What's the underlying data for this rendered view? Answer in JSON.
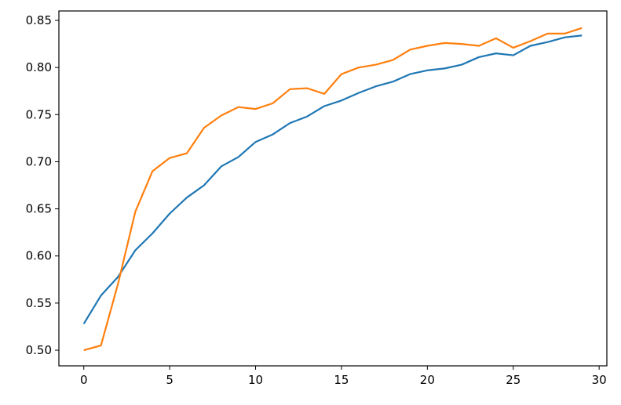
{
  "chart_data": {
    "type": "line",
    "x": [
      0,
      1,
      2,
      3,
      4,
      5,
      6,
      7,
      8,
      9,
      10,
      11,
      12,
      13,
      14,
      15,
      16,
      17,
      18,
      19,
      20,
      21,
      22,
      23,
      24,
      25,
      26,
      27,
      28,
      29
    ],
    "series": [
      {
        "color": "#1f77b4",
        "values": [
          0.528,
          0.558,
          0.578,
          0.606,
          0.624,
          0.645,
          0.662,
          0.675,
          0.695,
          0.705,
          0.721,
          0.729,
          0.741,
          0.748,
          0.759,
          0.765,
          0.773,
          0.78,
          0.785,
          0.793,
          0.797,
          0.799,
          0.803,
          0.811,
          0.815,
          0.813,
          0.823,
          0.827,
          0.832,
          0.834
        ]
      },
      {
        "color": "#ff7f0e",
        "values": [
          0.5,
          0.505,
          0.571,
          0.647,
          0.69,
          0.704,
          0.709,
          0.736,
          0.749,
          0.758,
          0.756,
          0.762,
          0.777,
          0.778,
          0.772,
          0.793,
          0.8,
          0.803,
          0.808,
          0.819,
          0.823,
          0.826,
          0.825,
          0.823,
          0.831,
          0.821,
          0.828,
          0.836,
          0.836,
          0.842
        ]
      }
    ],
    "xlim": [
      -1.45,
      30.45
    ],
    "xticks": [
      0,
      5,
      10,
      15,
      20,
      25,
      30
    ],
    "ylim": [
      0.4834,
      0.86
    ],
    "yticks": [
      {
        "value": 0.5,
        "label": "0.50"
      },
      {
        "value": 0.55,
        "label": "0.55"
      },
      {
        "value": 0.6,
        "label": "0.60"
      },
      {
        "value": 0.65,
        "label": "0.65"
      },
      {
        "value": 0.7,
        "label": "0.70"
      },
      {
        "value": 0.75,
        "label": "0.75"
      },
      {
        "value": 0.8,
        "label": "0.80"
      },
      {
        "value": 0.85,
        "label": "0.85"
      }
    ],
    "grid": false
  }
}
